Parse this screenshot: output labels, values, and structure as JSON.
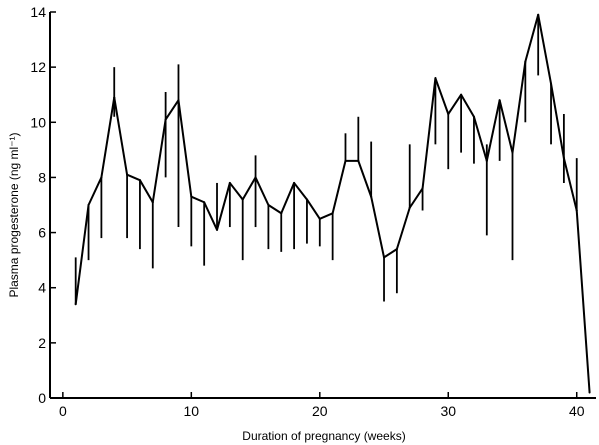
{
  "chart_data": {
    "type": "line",
    "title": "",
    "xlabel": "Duration of pregnancy (weeks)",
    "ylabel": "Plasma progesterone (ng ml⁻¹)",
    "xlim": [
      -1,
      41.5
    ],
    "ylim": [
      0,
      14
    ],
    "xticks": [
      0,
      10,
      20,
      30,
      40
    ],
    "yticks": [
      0,
      2,
      4,
      6,
      8,
      10,
      12,
      14
    ],
    "grid": false,
    "series": [
      {
        "x": [
          1,
          2,
          3,
          4,
          5,
          6,
          7,
          8,
          9,
          10,
          11,
          12,
          13,
          14,
          15,
          16,
          17,
          18,
          19,
          20,
          21,
          22,
          23,
          24,
          25,
          26,
          27,
          28,
          29,
          30,
          31,
          32,
          33,
          34,
          35,
          36,
          37,
          38,
          39,
          40,
          41
        ],
        "y": [
          3.4,
          7.0,
          8.0,
          10.9,
          8.1,
          7.9,
          7.1,
          10.1,
          10.8,
          7.3,
          7.1,
          6.1,
          7.8,
          7.2,
          8.0,
          7.0,
          6.7,
          7.8,
          7.2,
          6.5,
          6.7,
          8.6,
          8.6,
          7.3,
          5.1,
          5.4,
          6.9,
          7.6,
          11.6,
          10.3,
          11.0,
          10.2,
          8.6,
          10.8,
          8.9,
          12.2,
          13.9,
          11.4,
          8.7,
          6.8,
          0.2
        ],
        "error_low": [
          3.4,
          5.0,
          5.8,
          10.2,
          5.8,
          5.4,
          4.7,
          8.0,
          6.2,
          5.5,
          4.8,
          6.1,
          6.2,
          5.0,
          6.2,
          5.4,
          5.3,
          5.4,
          5.6,
          5.5,
          5.0,
          8.6,
          8.6,
          7.3,
          3.5,
          3.8,
          6.9,
          6.8,
          9.2,
          8.3,
          8.9,
          8.5,
          5.9,
          8.6,
          5.0,
          10.0,
          11.7,
          9.2,
          7.8,
          6.8,
          0.2
        ],
        "error_high": [
          5.1,
          7.0,
          8.0,
          12.0,
          8.1,
          7.9,
          7.1,
          11.1,
          12.1,
          7.3,
          7.1,
          7.8,
          7.8,
          7.2,
          8.8,
          7.0,
          6.7,
          7.8,
          7.2,
          6.5,
          6.7,
          9.6,
          10.2,
          9.3,
          5.1,
          5.4,
          9.2,
          7.6,
          11.6,
          10.3,
          11.0,
          10.2,
          9.2,
          10.8,
          8.9,
          12.2,
          13.9,
          11.4,
          10.3,
          8.7,
          0.2
        ]
      }
    ]
  }
}
